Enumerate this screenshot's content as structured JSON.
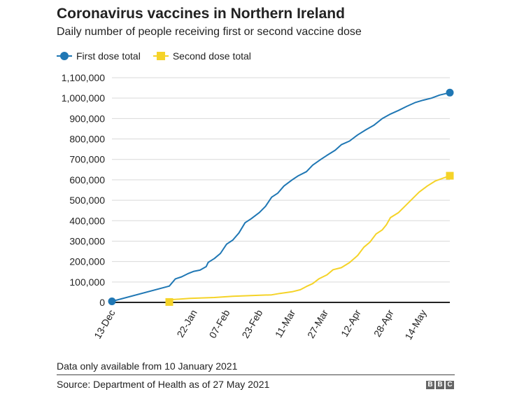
{
  "header": {
    "title": "Coronavirus vaccines in Northern Ireland",
    "subtitle": "Daily number of people receiving first or second vaccine dose"
  },
  "colors": {
    "first_dose": "#1f77b4",
    "second_dose": "#f5d328",
    "grid": "#d9d9d9",
    "axis": "#222222"
  },
  "legend": {
    "placement": "top-left",
    "items": [
      {
        "label": "First dose total",
        "marker": "circle"
      },
      {
        "label": "Second dose total",
        "marker": "square"
      }
    ]
  },
  "chart_data": {
    "type": "line",
    "title": "Coronavirus vaccines in Northern Ireland",
    "subtitle": "Daily number of people receiving first or second vaccine dose",
    "xlabel": "",
    "ylabel": "",
    "ylim": [
      0,
      1100000
    ],
    "y_ticks": [
      0,
      100000,
      200000,
      300000,
      400000,
      500000,
      600000,
      700000,
      800000,
      900000,
      1000000,
      1100000
    ],
    "y_tick_labels": [
      "0",
      "100,000",
      "200,000",
      "300,000",
      "400,000",
      "500,000",
      "600,000",
      "700,000",
      "800,000",
      "900,000",
      "1,000,000",
      "1,100,000"
    ],
    "x_range": [
      "2020-12-13",
      "2021-05-27"
    ],
    "x_ticks": [
      "2020-12-13",
      "2021-01-22",
      "2021-02-07",
      "2021-02-23",
      "2021-03-11",
      "2021-03-27",
      "2021-04-12",
      "2021-04-28",
      "2021-05-14"
    ],
    "x_tick_labels": [
      "13-Dec",
      "22-Jan",
      "07-Feb",
      "23-Feb",
      "11-Mar",
      "27-Mar",
      "12-Apr",
      "28-Apr",
      "14-May"
    ],
    "grid": true,
    "series": [
      {
        "name": "First dose total",
        "marker": "circle",
        "points": [
          [
            "2020-12-13",
            5000
          ],
          [
            "2021-01-10",
            80000
          ],
          [
            "2021-01-13",
            115000
          ],
          [
            "2021-01-16",
            125000
          ],
          [
            "2021-01-19",
            140000
          ],
          [
            "2021-01-22",
            152000
          ],
          [
            "2021-01-25",
            158000
          ],
          [
            "2021-01-28",
            175000
          ],
          [
            "2021-01-29",
            196000
          ],
          [
            "2021-02-01",
            215000
          ],
          [
            "2021-02-04",
            240000
          ],
          [
            "2021-02-07",
            285000
          ],
          [
            "2021-02-10",
            305000
          ],
          [
            "2021-02-13",
            340000
          ],
          [
            "2021-02-16",
            390000
          ],
          [
            "2021-02-19",
            410000
          ],
          [
            "2021-02-23",
            440000
          ],
          [
            "2021-02-26",
            470000
          ],
          [
            "2021-03-01",
            515000
          ],
          [
            "2021-03-04",
            535000
          ],
          [
            "2021-03-07",
            570000
          ],
          [
            "2021-03-11",
            600000
          ],
          [
            "2021-03-14",
            620000
          ],
          [
            "2021-03-18",
            640000
          ],
          [
            "2021-03-21",
            672000
          ],
          [
            "2021-03-25",
            700000
          ],
          [
            "2021-03-28",
            720000
          ],
          [
            "2021-04-01",
            745000
          ],
          [
            "2021-04-04",
            772000
          ],
          [
            "2021-04-08",
            790000
          ],
          [
            "2021-04-12",
            820000
          ],
          [
            "2021-04-16",
            845000
          ],
          [
            "2021-04-20",
            868000
          ],
          [
            "2021-04-24",
            900000
          ],
          [
            "2021-04-28",
            922000
          ],
          [
            "2021-05-02",
            940000
          ],
          [
            "2021-05-06",
            960000
          ],
          [
            "2021-05-10",
            978000
          ],
          [
            "2021-05-14",
            990000
          ],
          [
            "2021-05-18",
            1000000
          ],
          [
            "2021-05-22",
            1015000
          ],
          [
            "2021-05-27",
            1027000
          ]
        ]
      },
      {
        "name": "Second dose total",
        "marker": "square",
        "points": [
          [
            "2021-01-10",
            2000
          ],
          [
            "2021-01-12",
            14000
          ],
          [
            "2021-01-20",
            20000
          ],
          [
            "2021-02-01",
            24000
          ],
          [
            "2021-02-10",
            30000
          ],
          [
            "2021-02-20",
            34000
          ],
          [
            "2021-03-01",
            37000
          ],
          [
            "2021-03-05",
            44000
          ],
          [
            "2021-03-11",
            52000
          ],
          [
            "2021-03-15",
            62000
          ],
          [
            "2021-03-18",
            78000
          ],
          [
            "2021-03-21",
            92000
          ],
          [
            "2021-03-24",
            115000
          ],
          [
            "2021-03-28",
            135000
          ],
          [
            "2021-03-31",
            160000
          ],
          [
            "2021-04-04",
            170000
          ],
          [
            "2021-04-08",
            195000
          ],
          [
            "2021-04-12",
            230000
          ],
          [
            "2021-04-15",
            270000
          ],
          [
            "2021-04-18",
            295000
          ],
          [
            "2021-04-21",
            335000
          ],
          [
            "2021-04-24",
            355000
          ],
          [
            "2021-04-26",
            380000
          ],
          [
            "2021-04-28",
            415000
          ],
          [
            "2021-05-02",
            440000
          ],
          [
            "2021-05-05",
            470000
          ],
          [
            "2021-05-08",
            500000
          ],
          [
            "2021-05-12",
            540000
          ],
          [
            "2021-05-16",
            570000
          ],
          [
            "2021-05-20",
            595000
          ],
          [
            "2021-05-27",
            620000
          ]
        ]
      }
    ]
  },
  "footer": {
    "note": "Data only available from 10 January 2021",
    "source": "Source: Department of Health as of 27 May 2021",
    "logo_letters": [
      "B",
      "B",
      "C"
    ]
  }
}
